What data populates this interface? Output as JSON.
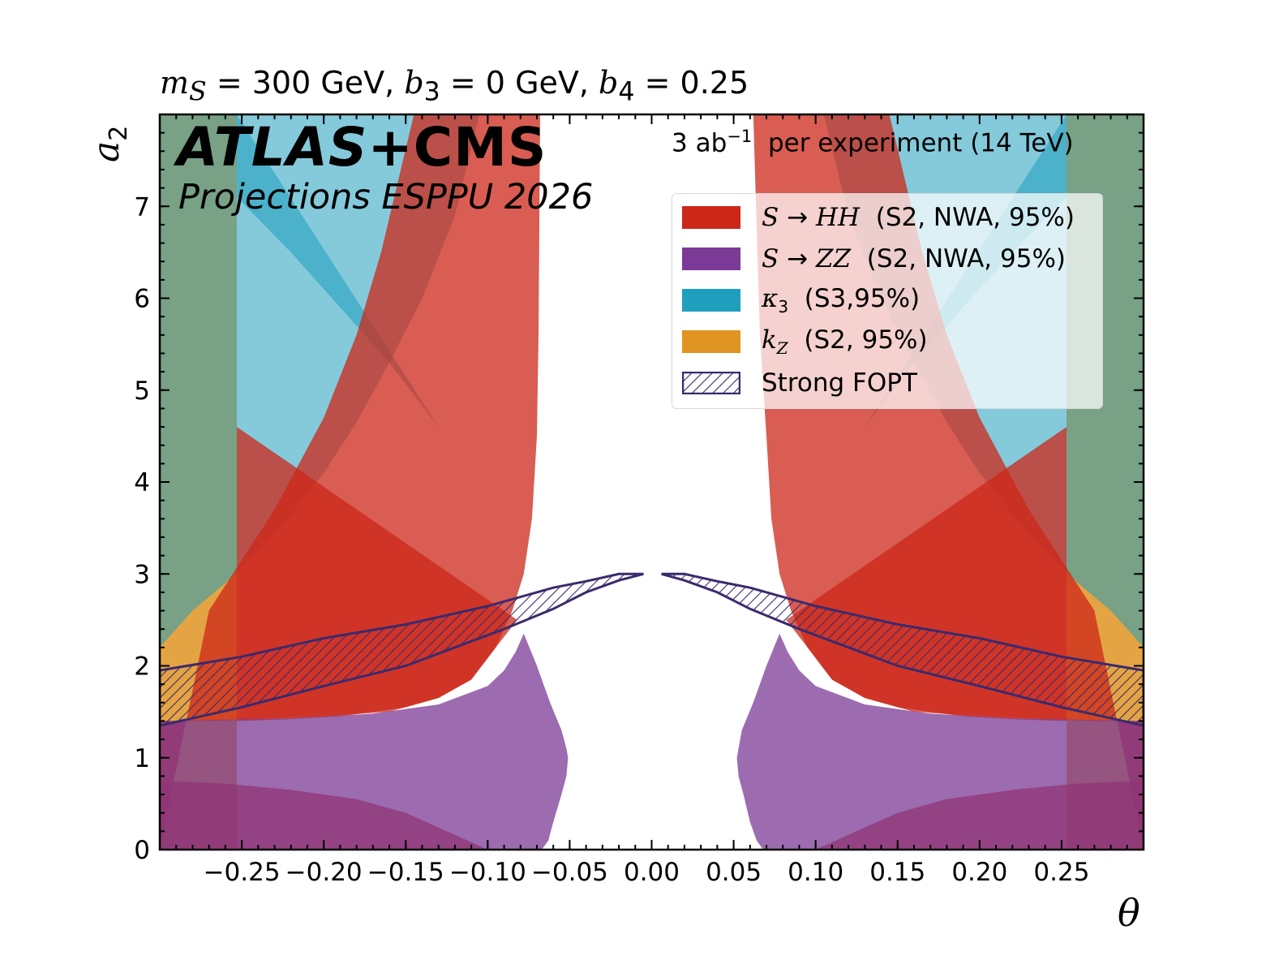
{
  "chart_data": {
    "type": "area",
    "title": {
      "m_label": "m",
      "m_sub": "S",
      "m_rest": " = 300 GeV, ",
      "b3_label": "b",
      "b3_sub": "3",
      "b3_rest": " = 0 GeV, ",
      "b4_label": "b",
      "b4_sub": "4",
      "b4_rest": " = 0.25"
    },
    "experiment": {
      "main": "ATLAS",
      "plus": "+CMS",
      "sub": "Projections ESPPU 2026"
    },
    "luminosity": {
      "prefix": "3 ab",
      "exp": "−1",
      "suffix": "  per experiment (14 TeV)"
    },
    "xlabel": "θ",
    "ylabel": {
      "base": "a",
      "sub": "2"
    },
    "xlim": [
      -0.3,
      0.3
    ],
    "ylim": [
      0,
      8
    ],
    "xticks": [
      -0.25,
      -0.2,
      -0.15,
      -0.1,
      -0.05,
      0.0,
      0.05,
      0.1,
      0.15,
      0.2,
      0.25
    ],
    "xtick_labels": [
      "−0.25",
      "−0.20",
      "−0.15",
      "−0.10",
      "−0.05",
      "0.00",
      "0.05",
      "0.10",
      "0.15",
      "0.20",
      "0.25"
    ],
    "yticks": [
      0,
      1,
      2,
      3,
      4,
      5,
      6,
      7
    ],
    "ytick_labels": [
      "0",
      "1",
      "2",
      "3",
      "4",
      "5",
      "6",
      "7"
    ],
    "legend": [
      {
        "id": "hh",
        "pre": "S",
        "arrow": " → ",
        "state": "HH",
        "post": "  (S2, NWA, 95%)",
        "color": "#cc2718"
      },
      {
        "id": "zz",
        "pre": "S",
        "arrow": " → ",
        "state": "ZZ",
        "post": "  (S2, NWA, 95%)",
        "color": "#7b3a96"
      },
      {
        "id": "k3",
        "pre": "κ",
        "sub": "3",
        "post": "  (S3,95%)",
        "color": "#1f9fbd"
      },
      {
        "id": "kz",
        "pre": "k",
        "sub": "Z",
        "post": "  (S2, 95%)",
        "color": "#e09422"
      },
      {
        "id": "fopt",
        "text": "Strong FOPT",
        "color": "#3b2a6e",
        "hatched": true
      }
    ],
    "series": [
      {
        "name": "kZ (S2, 95%)",
        "color": "#e09422",
        "opacity": 0.85,
        "regions": [
          {
            "x": [
              -0.3,
              -0.253,
              -0.253,
              -0.3
            ],
            "y": [
              0,
              0,
              8,
              8
            ]
          },
          {
            "x": [
              0.253,
              0.3,
              0.3,
              0.253
            ],
            "y": [
              0,
              0,
              8,
              8
            ]
          }
        ]
      },
      {
        "name": "κ3 (S3, 95%)",
        "color": "#1f9fbd",
        "opacity": 0.55,
        "regions": [
          {
            "x": [
              -0.3,
              -0.3,
              -0.28,
              -0.26,
              -0.24,
              -0.22,
              -0.2,
              -0.18,
              -0.16,
              -0.14,
              -0.12,
              -0.105,
              -0.3
            ],
            "y": [
              8,
              2.2,
              2.6,
              2.9,
              3.25,
              3.65,
              4.1,
              4.65,
              5.3,
              6.0,
              6.9,
              8,
              8
            ]
          },
          {
            "x": [
              0.3,
              0.3,
              0.28,
              0.26,
              0.24,
              0.22,
              0.2,
              0.18,
              0.16,
              0.14,
              0.12,
              0.105,
              0.3
            ],
            "y": [
              8,
              2.2,
              2.6,
              2.9,
              3.25,
              3.65,
              4.1,
              4.65,
              5.3,
              6.0,
              6.9,
              8,
              8
            ]
          },
          {
            "x": [
              -0.253,
              -0.253,
              -0.22,
              -0.19,
              -0.16,
              -0.13,
              -0.253
            ],
            "y": [
              8,
              7.1,
              6.5,
              5.9,
              5.3,
              4.6,
              8
            ]
          },
          {
            "x": [
              0.253,
              0.253,
              0.22,
              0.19,
              0.16,
              0.13,
              0.253
            ],
            "y": [
              8,
              7.1,
              6.5,
              5.9,
              5.3,
              4.6,
              8
            ]
          }
        ]
      },
      {
        "name": "S → HH (S2, NWA, 95%)",
        "color": "#cc2718",
        "opacity": 0.75,
        "regions": [
          {
            "x": [
              -0.3,
              -0.3,
              -0.27,
              -0.24,
              -0.2,
              -0.16,
              -0.13,
              -0.11,
              -0.095,
              -0.085,
              -0.078,
              -0.073,
              -0.07,
              -0.069,
              -0.068,
              -0.145,
              -0.165,
              -0.18,
              -0.2,
              -0.23,
              -0.27,
              -0.3
            ],
            "y": [
              0,
              1.4,
              1.4,
              1.42,
              1.45,
              1.5,
              1.65,
              1.85,
              2.2,
              2.6,
              3.0,
              3.6,
              4.5,
              5.6,
              8,
              8,
              6.5,
              5.6,
              4.7,
              3.7,
              2.6,
              0
            ]
          },
          {
            "x": [
              0.3,
              0.3,
              0.27,
              0.24,
              0.2,
              0.16,
              0.13,
              0.11,
              0.095,
              0.085,
              0.078,
              0.073,
              0.07,
              0.066,
              0.062,
              0.145,
              0.165,
              0.18,
              0.2,
              0.23,
              0.27,
              0.3
            ],
            "y": [
              0,
              1.4,
              1.4,
              1.42,
              1.45,
              1.5,
              1.65,
              1.85,
              2.2,
              2.6,
              3.0,
              3.6,
              4.5,
              5.6,
              8,
              8,
              6.5,
              5.6,
              4.7,
              3.7,
              2.6,
              0
            ]
          },
          {
            "x": [
              -0.3,
              -0.1,
              -0.125,
              -0.15,
              -0.18,
              -0.22,
              -0.26,
              -0.3
            ],
            "y": [
              0,
              0,
              0.2,
              0.4,
              0.55,
              0.65,
              0.72,
              0.75
            ]
          },
          {
            "x": [
              0.3,
              0.1,
              0.125,
              0.15,
              0.18,
              0.22,
              0.26,
              0.3
            ],
            "y": [
              0,
              0,
              0.2,
              0.4,
              0.55,
              0.65,
              0.72,
              0.75
            ]
          },
          {
            "x": [
              -0.253,
              -0.253,
              -0.22,
              -0.19,
              -0.17,
              -0.15,
              -0.13,
              -0.11,
              -0.095,
              -0.082
            ],
            "y": [
              4.6,
              1.4,
              1.42,
              1.45,
              1.5,
              1.55,
              1.65,
              1.85,
              2.2,
              2.5
            ]
          },
          {
            "x": [
              0.253,
              0.253,
              0.22,
              0.19,
              0.17,
              0.15,
              0.13,
              0.11,
              0.095,
              0.082
            ],
            "y": [
              4.6,
              1.4,
              1.42,
              1.45,
              1.5,
              1.55,
              1.65,
              1.85,
              2.2,
              2.5
            ]
          }
        ]
      },
      {
        "name": "S → ZZ (S2, NWA, 95%)",
        "color": "#7b3a96",
        "opacity": 0.75,
        "regions": [
          {
            "x": [
              -0.3,
              -0.27,
              -0.22,
              -0.17,
              -0.13,
              -0.1,
              -0.09,
              -0.083,
              -0.078,
              -0.07,
              -0.062,
              -0.055,
              -0.052,
              -0.051,
              -0.052,
              -0.055,
              -0.06,
              -0.063,
              -0.067,
              -0.3
            ],
            "y": [
              1.4,
              1.41,
              1.43,
              1.48,
              1.58,
              1.78,
              1.95,
              2.15,
              2.35,
              2.0,
              1.6,
              1.3,
              1.1,
              1.0,
              0.8,
              0.6,
              0.3,
              0.1,
              0,
              0
            ]
          },
          {
            "x": [
              0.3,
              0.27,
              0.22,
              0.17,
              0.13,
              0.1,
              0.09,
              0.083,
              0.078,
              0.07,
              0.062,
              0.055,
              0.053,
              0.052,
              0.053,
              0.056,
              0.06,
              0.064,
              0.068,
              0.3
            ],
            "y": [
              1.4,
              1.41,
              1.43,
              1.48,
              1.58,
              1.78,
              1.95,
              2.15,
              2.35,
              2.0,
              1.6,
              1.3,
              1.1,
              1.0,
              0.8,
              0.6,
              0.3,
              0.1,
              0,
              0
            ]
          }
        ]
      },
      {
        "name": "Strong FOPT",
        "color": "#3b2a6e",
        "hatched": true,
        "regions": [
          {
            "x": [
              -0.3,
              -0.25,
              -0.2,
              -0.15,
              -0.12,
              -0.09,
              -0.06,
              -0.04,
              -0.02,
              -0.005,
              -0.02,
              -0.04,
              -0.06,
              -0.08,
              -0.1,
              -0.15,
              -0.2,
              -0.25,
              -0.3
            ],
            "y": [
              1.35,
              1.55,
              1.78,
              2.0,
              2.2,
              2.4,
              2.62,
              2.8,
              2.93,
              3.0,
              3.0,
              2.92,
              2.85,
              2.75,
              2.65,
              2.45,
              2.3,
              2.1,
              1.95
            ]
          },
          {
            "x": [
              0.3,
              0.25,
              0.2,
              0.15,
              0.12,
              0.09,
              0.06,
              0.04,
              0.02,
              0.006,
              0.02,
              0.04,
              0.06,
              0.08,
              0.1,
              0.15,
              0.2,
              0.25,
              0.3
            ],
            "y": [
              1.35,
              1.55,
              1.78,
              2.0,
              2.2,
              2.4,
              2.62,
              2.8,
              2.93,
              3.0,
              3.0,
              2.92,
              2.85,
              2.75,
              2.65,
              2.45,
              2.3,
              2.1,
              1.95
            ]
          }
        ]
      }
    ]
  }
}
